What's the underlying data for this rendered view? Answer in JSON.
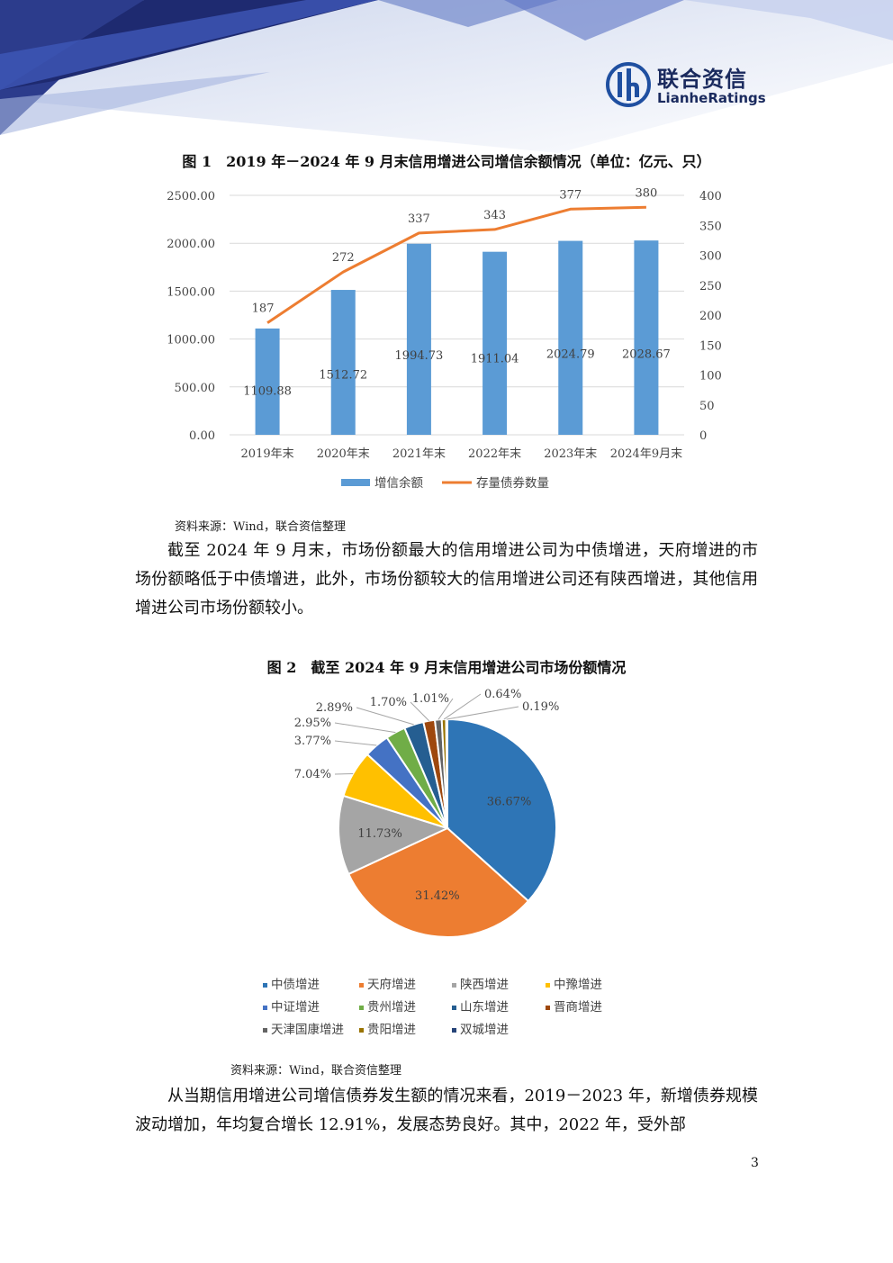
{
  "header": {
    "logo_cn": "联合资信",
    "logo_en": "LianheRatings"
  },
  "figure1": {
    "title": "图 1　2019 年－2024 年 9 月末信用增进公司增信余额情况（单位：亿元、只）",
    "source": "资料来源：Wind，联合资信整理"
  },
  "figure2": {
    "title": "图 2　截至 2024 年 9 月末信用增进公司市场份额情况",
    "source": "资料来源：Wind，联合资信整理"
  },
  "paragraph1": "截至 2024 年 9 月末，市场份额最大的信用增进公司为中债增进，天府增进的市场份额略低于中债增进，此外，市场份额较大的信用增进公司还有陕西增进，其他信用增进公司市场份额较小。",
  "paragraph2": "从当期信用增进公司增信债券发生额的情况来看，2019－2023 年，新增债券规模波动增加，年均复合增长 12.91%，发展态势良好。其中，2022 年，受外部",
  "page_number": "3",
  "chart_data": [
    {
      "type": "bar+line",
      "categories": [
        "2019年末",
        "2020年末",
        "2021年末",
        "2022年末",
        "2023年末",
        "2024年9月末"
      ],
      "series": [
        {
          "name": "增信余额",
          "type": "bar",
          "axis": "left",
          "values": [
            1109.88,
            1512.72,
            1994.73,
            1911.04,
            2024.79,
            2028.67
          ],
          "color": "#5b9bd5"
        },
        {
          "name": "存量债券数量",
          "type": "line",
          "axis": "right",
          "values": [
            187,
            272,
            337,
            343,
            377,
            380
          ],
          "color": "#ed7d31"
        }
      ],
      "left_axis": {
        "ylim": [
          0,
          2500
        ],
        "ticks": [
          "0.00",
          "500.00",
          "1000.00",
          "1500.00",
          "2000.00",
          "2500.00"
        ]
      },
      "right_axis": {
        "ylim": [
          0,
          400
        ],
        "ticks": [
          "0",
          "50",
          "100",
          "150",
          "200",
          "250",
          "300",
          "350",
          "400"
        ]
      },
      "grid": true,
      "legend": "bottom"
    },
    {
      "type": "pie",
      "labels": [
        "中债增进",
        "天府增进",
        "陕西增进",
        "中豫增进",
        "中证增进",
        "贵州增进",
        "山东增进",
        "晋商增进",
        "天津国康增进",
        "贵阳增进",
        "双城增进"
      ],
      "values": [
        36.67,
        31.42,
        11.73,
        7.04,
        3.77,
        2.95,
        2.89,
        1.7,
        1.01,
        0.64,
        0.19
      ],
      "value_labels": [
        "36.67%",
        "31.42%",
        "11.73%",
        "7.04%",
        "3.77%",
        "2.95%",
        "2.89%",
        "1.70%",
        "1.01%",
        "0.64%",
        "0.19%"
      ],
      "colors": [
        "#2e75b6",
        "#ed7d31",
        "#a5a5a5",
        "#ffc000",
        "#4472c4",
        "#70ad47",
        "#255e91",
        "#9e480e",
        "#636363",
        "#997300",
        "#264478"
      ],
      "legend": "bottom"
    }
  ]
}
